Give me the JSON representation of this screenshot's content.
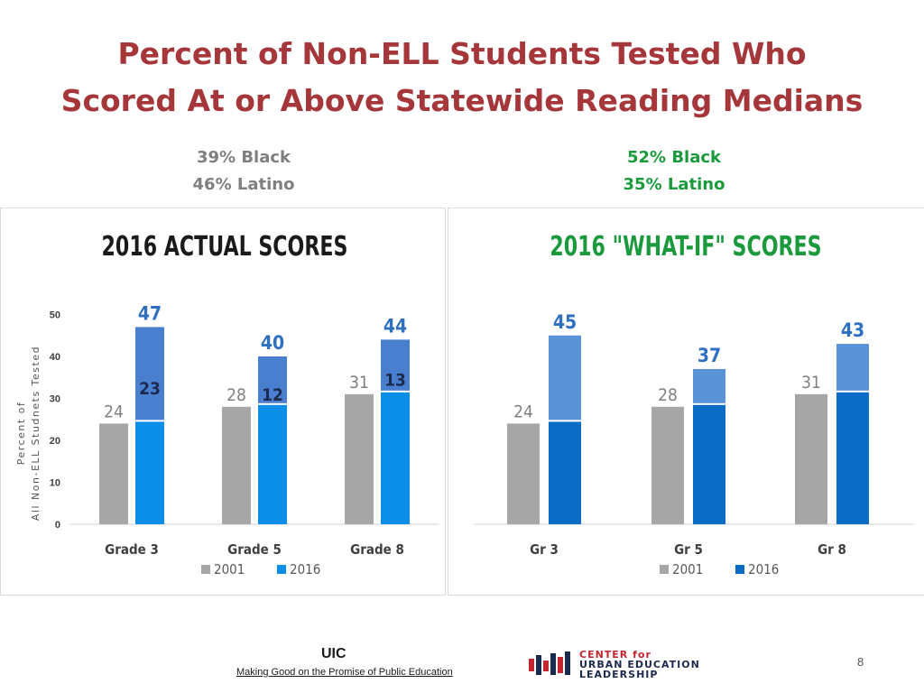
{
  "title_line1": "Percent of Non-ELL Students Tested Who",
  "title_line2": "Scored At or Above Statewide Reading Medians",
  "left_demo": {
    "line1": "39% Black",
    "line2": "46% Latino",
    "color": "#7f7f7f"
  },
  "right_demo": {
    "line1": "52% Black",
    "line2": "35% Latino",
    "color": "#1a9a3c"
  },
  "chart_data": [
    {
      "type": "bar",
      "title": "2016 ACTUAL SCORES",
      "title_color": "#1a1a1a",
      "ylabel_line1": "Percent of",
      "ylabel_line2": "All Non-ELL Studnets Tested",
      "yticks": [
        "0",
        "10",
        "20",
        "30",
        "40",
        "50"
      ],
      "ylim": [
        0,
        50
      ],
      "categories": [
        "Grade 3",
        "Grade 5",
        "Grade 8"
      ],
      "series": [
        {
          "name": "2001",
          "values": [
            24,
            28,
            31
          ],
          "color": "#a6a6a6"
        },
        {
          "name": "2016",
          "values": [
            47,
            40,
            44
          ],
          "color": "#0a8ee8",
          "base_values": [
            24,
            28,
            31
          ],
          "top_color": "#4a7fd0"
        }
      ],
      "labels_2001": [
        "24",
        "28",
        "31"
      ],
      "labels_2016": [
        "47",
        "40",
        "44"
      ],
      "gain_labels": [
        "23",
        "12",
        "13"
      ],
      "legend": [
        "2001",
        "2016"
      ],
      "legend_position": "bottom",
      "grid": false
    },
    {
      "type": "bar",
      "title": "2016 \"WHAT-IF\" SCORES",
      "title_color": "#1a9a3c",
      "categories": [
        "Gr 3",
        "Gr 5",
        "Gr 8"
      ],
      "ylim": [
        0,
        50
      ],
      "series": [
        {
          "name": "2001",
          "values": [
            24,
            28,
            31
          ],
          "color": "#a6a6a6"
        },
        {
          "name": "2016",
          "values": [
            45,
            37,
            43
          ],
          "color": "#0a6cc4",
          "base_values": [
            24,
            28,
            31
          ],
          "top_color": "#5a93d8"
        }
      ],
      "labels_2001": [
        "24",
        "28",
        "31"
      ],
      "labels_2016": [
        "45",
        "37",
        "43"
      ],
      "legend": [
        "2001",
        "2016"
      ],
      "legend_position": "bottom",
      "grid": false
    }
  ],
  "footer": {
    "uic": "UIC",
    "tagline": "Making Good on the Promise of Public Education",
    "logo_line1": "CENTER for",
    "logo_line2": "URBAN EDUCATION",
    "logo_line3": "LEADERSHIP",
    "page_number": "8"
  }
}
